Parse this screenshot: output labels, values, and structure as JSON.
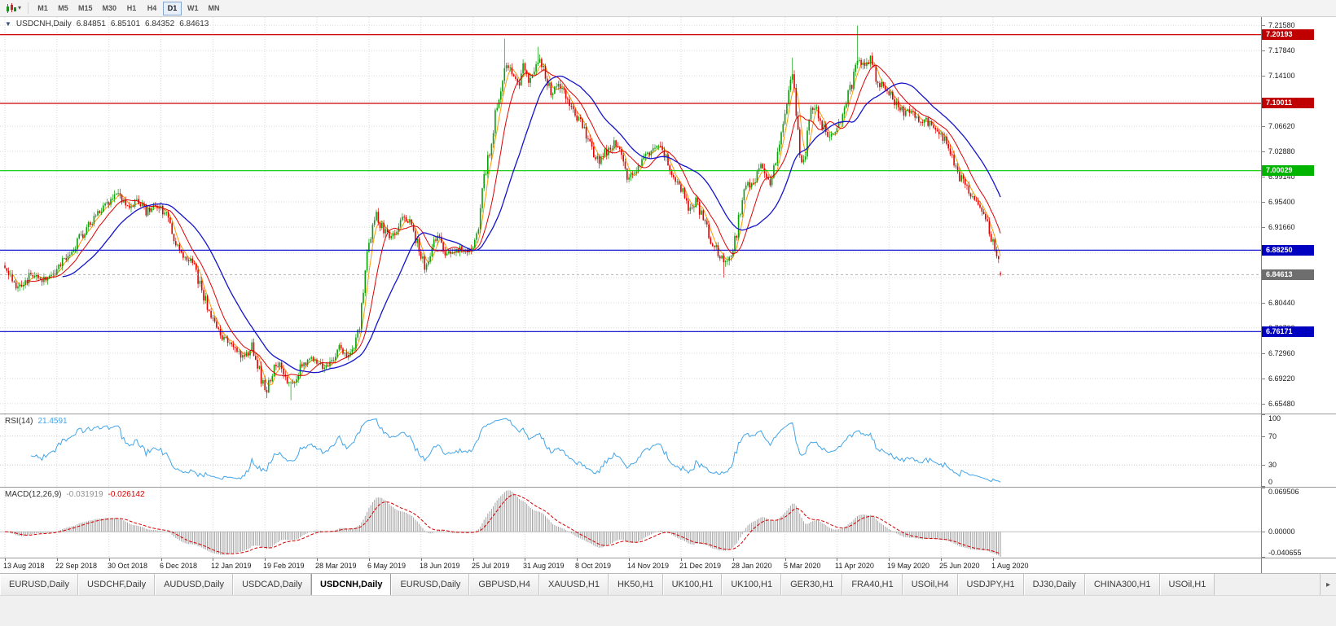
{
  "toolbar": {
    "dropdown_arrow": "▾",
    "timeframes": [
      {
        "label": "M1",
        "active": false
      },
      {
        "label": "M5",
        "active": false
      },
      {
        "label": "M15",
        "active": false
      },
      {
        "label": "M30",
        "active": false
      },
      {
        "label": "H1",
        "active": false
      },
      {
        "label": "H4",
        "active": false
      },
      {
        "label": "D1",
        "active": true
      },
      {
        "label": "W1",
        "active": false
      },
      {
        "label": "MN",
        "active": false
      }
    ]
  },
  "chart": {
    "collapse_arrow": "▼",
    "symbol_title": "USDCNH,Daily",
    "open": "6.84851",
    "high": "6.85101",
    "low": "6.84352",
    "close": "6.84613"
  },
  "chart_data": {
    "type": "candlestick",
    "symbol": "USDCNH",
    "timeframe": "Daily",
    "bars_total": 537,
    "bars_per_label": 28,
    "x_labels": [
      "13 Aug 2018",
      "22 Sep 2018",
      "30 Oct 2018",
      "6 Dec 2018",
      "12 Jan 2019",
      "19 Feb 2019",
      "28 Mar 2019",
      "6 May 2019",
      "18 Jun 2019",
      "25 Jul 2019",
      "31 Aug 2019",
      "8 Oct 2019",
      "14 Nov 2019",
      "21 Dec 2019",
      "28 Jan 2020",
      "5 Mar 2020",
      "11 Apr 2020",
      "19 May 2020",
      "25 Jun 2020",
      "1 Aug 2020"
    ],
    "price_axis": {
      "min": 6.6402,
      "max": 7.228,
      "tick_labels": [
        "7.21580",
        "7.17840",
        "7.14100",
        "7.10360",
        "7.06620",
        "7.02880",
        "6.99140",
        "6.95400",
        "6.91660",
        "6.87920",
        "6.84180",
        "6.80440",
        "6.76700",
        "6.72960",
        "6.69220",
        "6.65480"
      ]
    },
    "horizontal_lines": [
      {
        "value": 7.20193,
        "label": "7.20193",
        "color": "#CC0000",
        "badge": "#C00000"
      },
      {
        "value": 7.10011,
        "label": "7.10011",
        "color": "#CC0000",
        "badge": "#C00000"
      },
      {
        "value": 7.00029,
        "label": "7.00029",
        "color": "#00C800",
        "badge": "#00B400"
      },
      {
        "value": 6.8825,
        "label": "6.88250",
        "color": "#0000CC",
        "badge": "#0000C0"
      },
      {
        "value": 6.76171,
        "label": "6.76171",
        "color": "#0000CC",
        "badge": "#0000C0"
      }
    ],
    "current_price": {
      "value": 6.84613,
      "label": "6.84613",
      "badge": "#6E6E6E"
    },
    "last_candle": {
      "open": 6.84851,
      "high": 6.85101,
      "low": 6.84352,
      "close": 6.84613
    },
    "candle_colors": {
      "up": "#0AA00A",
      "down": "#E00000"
    },
    "overlays": [
      {
        "name": "ma-fast-hidden",
        "period": 5,
        "color": "#FF9900",
        "width": 1,
        "layer": "under"
      },
      {
        "name": "ma-fast",
        "period": 13,
        "color": "#DD0000",
        "width": 1,
        "layer": "over"
      },
      {
        "name": "ma-slow",
        "period": 32,
        "color": "#1414CC",
        "width": 1.3,
        "layer": "over"
      }
    ],
    "price_waypoints": [
      [
        0,
        6.862
      ],
      [
        5,
        6.833
      ],
      [
        9,
        6.824
      ],
      [
        14,
        6.85
      ],
      [
        20,
        6.838
      ],
      [
        26,
        6.848
      ],
      [
        32,
        6.868
      ],
      [
        38,
        6.89
      ],
      [
        44,
        6.916
      ],
      [
        50,
        6.936
      ],
      [
        56,
        6.952
      ],
      [
        61,
        6.966
      ],
      [
        66,
        6.944
      ],
      [
        71,
        6.958
      ],
      [
        76,
        6.938
      ],
      [
        81,
        6.952
      ],
      [
        85,
        6.94
      ],
      [
        89,
        6.925
      ],
      [
        93,
        6.885
      ],
      [
        97,
        6.872
      ],
      [
        101,
        6.866
      ],
      [
        105,
        6.828
      ],
      [
        109,
        6.8
      ],
      [
        113,
        6.772
      ],
      [
        118,
        6.752
      ],
      [
        123,
        6.742
      ],
      [
        128,
        6.722
      ],
      [
        133,
        6.74
      ],
      [
        138,
        6.694
      ],
      [
        141,
        6.672
      ],
      [
        144,
        6.705
      ],
      [
        148,
        6.716
      ],
      [
        152,
        6.69
      ],
      [
        156,
        6.688
      ],
      [
        160,
        6.712
      ],
      [
        164,
        6.722
      ],
      [
        168,
        6.716
      ],
      [
        172,
        6.706
      ],
      [
        176,
        6.722
      ],
      [
        180,
        6.736
      ],
      [
        184,
        6.728
      ],
      [
        188,
        6.738
      ],
      [
        191,
        6.768
      ],
      [
        194,
        6.858
      ],
      [
        197,
        6.9
      ],
      [
        200,
        6.93
      ],
      [
        203,
        6.916
      ],
      [
        207,
        6.898
      ],
      [
        211,
        6.916
      ],
      [
        215,
        6.93
      ],
      [
        219,
        6.924
      ],
      [
        223,
        6.88
      ],
      [
        226,
        6.856
      ],
      [
        229,
        6.882
      ],
      [
        233,
        6.904
      ],
      [
        237,
        6.882
      ],
      [
        241,
        6.876
      ],
      [
        245,
        6.884
      ],
      [
        249,
        6.88
      ],
      [
        252,
        6.884
      ],
      [
        255,
        6.914
      ],
      [
        258,
        6.99
      ],
      [
        261,
        7.03
      ],
      [
        264,
        7.08
      ],
      [
        267,
        7.126
      ],
      [
        270,
        7.16
      ],
      [
        273,
        7.146
      ],
      [
        276,
        7.128
      ],
      [
        279,
        7.15
      ],
      [
        282,
        7.136
      ],
      [
        285,
        7.146
      ],
      [
        288,
        7.164
      ],
      [
        291,
        7.14
      ],
      [
        294,
        7.116
      ],
      [
        297,
        7.13
      ],
      [
        300,
        7.12
      ],
      [
        304,
        7.098
      ],
      [
        308,
        7.08
      ],
      [
        312,
        7.06
      ],
      [
        316,
        7.03
      ],
      [
        320,
        7.01
      ],
      [
        324,
        7.03
      ],
      [
        328,
        7.04
      ],
      [
        332,
        7.024
      ],
      [
        336,
        6.988
      ],
      [
        340,
        7.0
      ],
      [
        344,
        7.02
      ],
      [
        348,
        7.03
      ],
      [
        352,
        7.04
      ],
      [
        356,
        7.02
      ],
      [
        360,
        6.995
      ],
      [
        364,
        6.975
      ],
      [
        368,
        6.94
      ],
      [
        372,
        6.956
      ],
      [
        376,
        6.93
      ],
      [
        380,
        6.9
      ],
      [
        384,
        6.88
      ],
      [
        388,
        6.862
      ],
      [
        391,
        6.882
      ],
      [
        394,
        6.91
      ],
      [
        397,
        6.96
      ],
      [
        400,
        6.976
      ],
      [
        403,
        6.984
      ],
      [
        406,
        7.01
      ],
      [
        409,
        6.99
      ],
      [
        412,
        6.98
      ],
      [
        415,
        7.01
      ],
      [
        418,
        7.05
      ],
      [
        421,
        7.09
      ],
      [
        424,
        7.15
      ],
      [
        426,
        7.09
      ],
      [
        428,
        7.03
      ],
      [
        430,
        7.01
      ],
      [
        432,
        7.05
      ],
      [
        434,
        7.09
      ],
      [
        436,
        7.1
      ],
      [
        439,
        7.07
      ],
      [
        442,
        7.06
      ],
      [
        445,
        7.05
      ],
      [
        448,
        7.07
      ],
      [
        451,
        7.08
      ],
      [
        454,
        7.11
      ],
      [
        457,
        7.14
      ],
      [
        460,
        7.17
      ],
      [
        463,
        7.15
      ],
      [
        466,
        7.165
      ],
      [
        469,
        7.14
      ],
      [
        472,
        7.126
      ],
      [
        476,
        7.116
      ],
      [
        480,
        7.1
      ],
      [
        484,
        7.086
      ],
      [
        488,
        7.09
      ],
      [
        492,
        7.07
      ],
      [
        496,
        7.076
      ],
      [
        500,
        7.06
      ],
      [
        504,
        7.056
      ],
      [
        508,
        7.03
      ],
      [
        512,
        7.0
      ],
      [
        516,
        6.982
      ],
      [
        520,
        6.964
      ],
      [
        524,
        6.95
      ],
      [
        527,
        6.94
      ],
      [
        530,
        6.91
      ],
      [
        533,
        6.89
      ],
      [
        535,
        6.86
      ],
      [
        536,
        6.849
      ]
    ],
    "spikes": [
      {
        "bar": 141,
        "low": 6.663
      },
      {
        "bar": 154,
        "low": 6.66
      },
      {
        "bar": 226,
        "low": 6.848
      },
      {
        "bar": 269,
        "high": 7.196
      },
      {
        "bar": 287,
        "high": 7.184
      },
      {
        "bar": 387,
        "low": 6.842
      },
      {
        "bar": 424,
        "high": 7.168
      },
      {
        "bar": 459,
        "high": 7.2155
      }
    ],
    "rsi": {
      "name": "RSI(14)",
      "display_value": "21.4591",
      "period": 14,
      "color": "#42A5E8",
      "levels": [
        70,
        30
      ],
      "axis_labels": [
        "100",
        "70",
        "30",
        "0"
      ],
      "range": [
        0,
        100
      ]
    },
    "macd": {
      "name": "MACD(12,26,9)",
      "display_values": [
        "-0.031919",
        "-0.026142"
      ],
      "fast": 12,
      "slow": 26,
      "signal_period": 9,
      "histogram_color": "#A0A0A0",
      "signal_color": "#D40000",
      "axis_labels": [
        "0.069506",
        "0.00000",
        "-0.040655"
      ],
      "range": [
        -0.0407,
        0.0695
      ]
    }
  },
  "window_tabs": {
    "scroll_right_arrow": "▸",
    "tabs": [
      {
        "label": "EURUSD,Daily",
        "active": false
      },
      {
        "label": "USDCHF,Daily",
        "active": false
      },
      {
        "label": "AUDUSD,Daily",
        "active": false
      },
      {
        "label": "USDCAD,Daily",
        "active": false
      },
      {
        "label": "USDCNH,Daily",
        "active": true
      },
      {
        "label": "EURUSD,Daily",
        "active": false
      },
      {
        "label": "GBPUSD,H4",
        "active": false
      },
      {
        "label": "XAUUSD,H1",
        "active": false
      },
      {
        "label": "HK50,H1",
        "active": false
      },
      {
        "label": "UK100,H1",
        "active": false
      },
      {
        "label": "UK100,H1",
        "active": false
      },
      {
        "label": "GER30,H1",
        "active": false
      },
      {
        "label": "FRA40,H1",
        "active": false
      },
      {
        "label": "USOil,H4",
        "active": false
      },
      {
        "label": "USDJPY,H1",
        "active": false
      },
      {
        "label": "DJ30,Daily",
        "active": false
      },
      {
        "label": "CHINA300,H1",
        "active": false
      },
      {
        "label": "USOil,H1",
        "active": false
      }
    ]
  }
}
